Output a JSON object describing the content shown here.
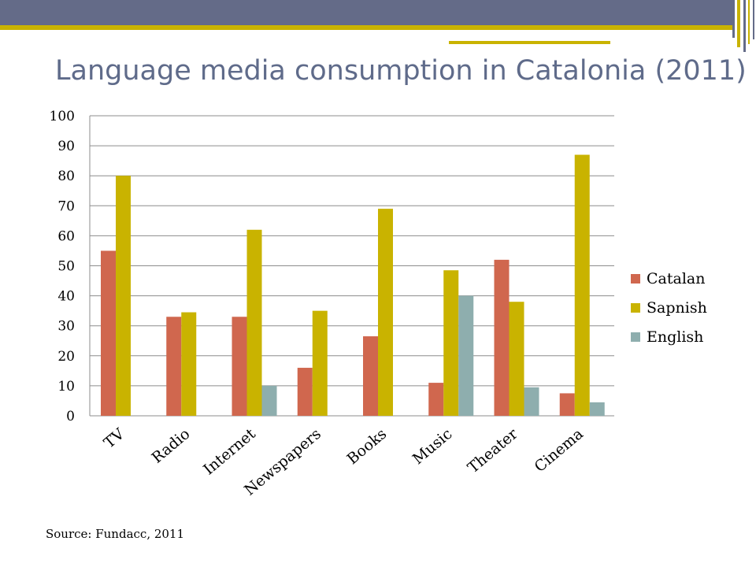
{
  "title": "Language media consumption in Catalonia (2011)",
  "source": "Source: Fundacc, 2011",
  "colors": {
    "header_band": "#646b88",
    "header_stripe": "#c9b300",
    "title": "#5f6b8a",
    "gridline": "#8c8c8c"
  },
  "chart_data": {
    "type": "bar",
    "title": "",
    "xlabel": "",
    "ylabel": "",
    "ylim": [
      0,
      100
    ],
    "yticks": [
      0,
      10,
      20,
      30,
      40,
      50,
      60,
      70,
      80,
      90,
      100
    ],
    "grid": true,
    "legend_position": "right",
    "categories": [
      "TV",
      "Radio",
      "Internet",
      "Newspapers",
      "Books",
      "Music",
      "Theater",
      "Cinema"
    ],
    "series": [
      {
        "name": "Catalan",
        "color": "#d0674e",
        "values": [
          55,
          33,
          33,
          16,
          26.5,
          11,
          52,
          7.5
        ]
      },
      {
        "name": "Sapnish",
        "color": "#c9b300",
        "values": [
          80,
          34.5,
          62,
          35,
          69,
          48.5,
          38,
          87
        ]
      },
      {
        "name": "English",
        "color": "#8eaeae",
        "values": [
          null,
          null,
          10,
          null,
          null,
          40,
          9.5,
          4.5
        ]
      }
    ]
  }
}
